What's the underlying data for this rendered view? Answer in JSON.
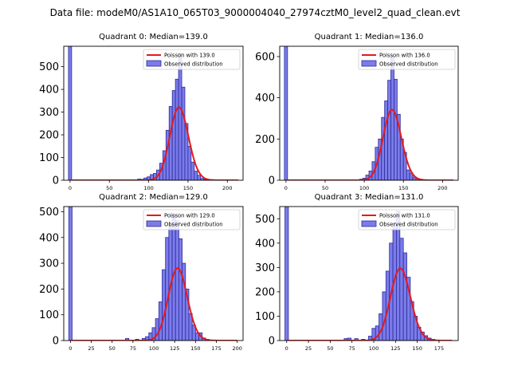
{
  "suptitle": "Data file: modeM0/AS1A10_065T03_9000004040_27974cztM0_level2_quad_clean.evt",
  "colors": {
    "bar_fill": "#7b7bea",
    "bar_edge": "#2c2c9a",
    "poisson_line": "#e41a1c",
    "axis": "#000000"
  },
  "chart_data": [
    {
      "type": "bar",
      "title": "Quadrant 0: Median=139.0",
      "median": 139.0,
      "xlim": [
        -8,
        220
      ],
      "ylim": [
        0,
        590
      ],
      "xticks": [
        0,
        50,
        100,
        150,
        200
      ],
      "yticks": [
        0,
        100,
        200,
        300,
        400,
        500
      ],
      "bin_width": 4,
      "spike": {
        "x": 0,
        "value": 590
      },
      "bars": [
        {
          "x": 80,
          "value": 2
        },
        {
          "x": 84,
          "value": 2
        },
        {
          "x": 88,
          "value": 5
        },
        {
          "x": 92,
          "value": 4
        },
        {
          "x": 96,
          "value": 10
        },
        {
          "x": 100,
          "value": 15
        },
        {
          "x": 104,
          "value": 25
        },
        {
          "x": 108,
          "value": 30
        },
        {
          "x": 112,
          "value": 45
        },
        {
          "x": 116,
          "value": 75
        },
        {
          "x": 120,
          "value": 130
        },
        {
          "x": 124,
          "value": 220
        },
        {
          "x": 128,
          "value": 325
        },
        {
          "x": 132,
          "value": 395
        },
        {
          "x": 136,
          "value": 445
        },
        {
          "x": 140,
          "value": 560
        },
        {
          "x": 144,
          "value": 410
        },
        {
          "x": 148,
          "value": 250
        },
        {
          "x": 152,
          "value": 150
        },
        {
          "x": 156,
          "value": 80
        },
        {
          "x": 160,
          "value": 40
        },
        {
          "x": 164,
          "value": 22
        },
        {
          "x": 168,
          "value": 8
        },
        {
          "x": 172,
          "value": 3
        }
      ],
      "legend": [
        "Poisson with 139.0",
        "Observed distribution"
      ],
      "poisson_mean": 139.0,
      "poisson_scale": 9500,
      "poisson_range": [
        0,
        214
      ]
    },
    {
      "type": "bar",
      "title": "Quadrant 1: Median=136.0",
      "median": 136.0,
      "xlim": [
        -8,
        220
      ],
      "ylim": [
        0,
        650
      ],
      "xticks": [
        0,
        50,
        100,
        150,
        200
      ],
      "yticks": [
        0,
        200,
        400,
        600
      ],
      "bin_width": 4,
      "spike": {
        "x": 0,
        "value": 650
      },
      "bars": [
        {
          "x": 96,
          "value": 5
        },
        {
          "x": 100,
          "value": 10
        },
        {
          "x": 104,
          "value": 25
        },
        {
          "x": 108,
          "value": 45
        },
        {
          "x": 112,
          "value": 90
        },
        {
          "x": 116,
          "value": 160
        },
        {
          "x": 120,
          "value": 200
        },
        {
          "x": 124,
          "value": 305
        },
        {
          "x": 128,
          "value": 385
        },
        {
          "x": 132,
          "value": 485
        },
        {
          "x": 136,
          "value": 600
        },
        {
          "x": 140,
          "value": 490
        },
        {
          "x": 144,
          "value": 320
        },
        {
          "x": 148,
          "value": 200
        },
        {
          "x": 152,
          "value": 135
        },
        {
          "x": 156,
          "value": 50
        },
        {
          "x": 160,
          "value": 35
        },
        {
          "x": 164,
          "value": 15
        },
        {
          "x": 168,
          "value": 8
        },
        {
          "x": 172,
          "value": 3
        }
      ],
      "legend": [
        "Poisson with 136.0",
        "Observed distribution"
      ],
      "poisson_mean": 136.0,
      "poisson_scale": 10000,
      "poisson_range": [
        0,
        214
      ]
    },
    {
      "type": "bar",
      "title": "Quadrant 2: Median=129.0",
      "median": 129.0,
      "xlim": [
        -8,
        207
      ],
      "ylim": [
        0,
        520
      ],
      "xticks": [
        0,
        25,
        50,
        75,
        100,
        125,
        150,
        175,
        200
      ],
      "yticks": [
        0,
        100,
        200,
        300,
        400,
        500
      ],
      "bin_width": 4,
      "spike": {
        "x": 0,
        "value": 520
      },
      "bars": [
        {
          "x": 68,
          "value": 8
        },
        {
          "x": 80,
          "value": 5
        },
        {
          "x": 88,
          "value": 8
        },
        {
          "x": 92,
          "value": 15
        },
        {
          "x": 96,
          "value": 30
        },
        {
          "x": 100,
          "value": 50
        },
        {
          "x": 104,
          "value": 85
        },
        {
          "x": 108,
          "value": 150
        },
        {
          "x": 112,
          "value": 275
        },
        {
          "x": 116,
          "value": 400
        },
        {
          "x": 120,
          "value": 450
        },
        {
          "x": 124,
          "value": 490
        },
        {
          "x": 128,
          "value": 465
        },
        {
          "x": 132,
          "value": 395
        },
        {
          "x": 136,
          "value": 300
        },
        {
          "x": 140,
          "value": 200
        },
        {
          "x": 144,
          "value": 105
        },
        {
          "x": 148,
          "value": 60
        },
        {
          "x": 152,
          "value": 30
        },
        {
          "x": 156,
          "value": 30
        },
        {
          "x": 160,
          "value": 10
        },
        {
          "x": 164,
          "value": 5
        },
        {
          "x": 168,
          "value": 2
        }
      ],
      "legend": [
        "Poisson with 129.0",
        "Observed distribution"
      ],
      "poisson_mean": 129.0,
      "poisson_scale": 8000,
      "poisson_range": [
        0,
        200
      ]
    },
    {
      "type": "bar",
      "title": "Quadrant 3: Median=131.0",
      "median": 131.0,
      "xlim": [
        -8,
        197
      ],
      "ylim": [
        0,
        550
      ],
      "xticks": [
        0,
        25,
        50,
        75,
        100,
        125,
        150,
        175
      ],
      "yticks": [
        0,
        100,
        200,
        300,
        400,
        500
      ],
      "bin_width": 4,
      "spike": {
        "x": 0,
        "value": 550
      },
      "bars": [
        {
          "x": 68,
          "value": 8
        },
        {
          "x": 72,
          "value": 10
        },
        {
          "x": 80,
          "value": 8
        },
        {
          "x": 88,
          "value": 5
        },
        {
          "x": 96,
          "value": 18
        },
        {
          "x": 100,
          "value": 50
        },
        {
          "x": 104,
          "value": 60
        },
        {
          "x": 108,
          "value": 110
        },
        {
          "x": 112,
          "value": 200
        },
        {
          "x": 116,
          "value": 285
        },
        {
          "x": 120,
          "value": 400
        },
        {
          "x": 124,
          "value": 480
        },
        {
          "x": 128,
          "value": 530
        },
        {
          "x": 132,
          "value": 420
        },
        {
          "x": 136,
          "value": 360
        },
        {
          "x": 140,
          "value": 260
        },
        {
          "x": 144,
          "value": 160
        },
        {
          "x": 148,
          "value": 100
        },
        {
          "x": 152,
          "value": 55
        },
        {
          "x": 156,
          "value": 35
        },
        {
          "x": 160,
          "value": 20
        },
        {
          "x": 164,
          "value": 10
        },
        {
          "x": 168,
          "value": 5
        }
      ],
      "legend": [
        "Poisson with 131.0",
        "Observed distribution"
      ],
      "poisson_mean": 131.0,
      "poisson_scale": 8500,
      "poisson_range": [
        0,
        190
      ]
    }
  ]
}
